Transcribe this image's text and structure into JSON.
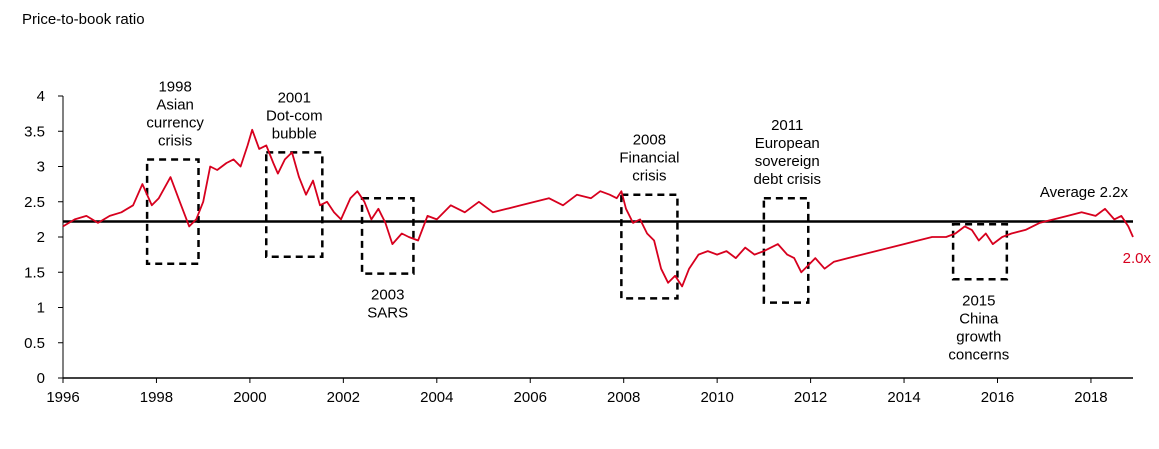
{
  "chart_data": {
    "type": "line",
    "title": "",
    "ylabel": "Price-to-book ratio",
    "xlabel": "",
    "ylim": [
      0,
      4
    ],
    "xlim": [
      1996,
      2018.9
    ],
    "grid": false,
    "y_ticks": [
      "0",
      "0.5",
      "1",
      "1.5",
      "2",
      "2.5",
      "3",
      "3.5",
      "4"
    ],
    "x_ticks": [
      "1996",
      "1998",
      "2000",
      "2002",
      "2004",
      "2006",
      "2008",
      "2010",
      "2012",
      "2014",
      "2016",
      "2018"
    ],
    "colors": {
      "series": "#d7001e",
      "average": "#000000"
    },
    "average": {
      "value": 2.22,
      "label": "Average 2.2x"
    },
    "end_label": {
      "text": "2.0x",
      "x": 2018.85,
      "y": 2.0
    },
    "series": [
      {
        "x": [
          1996.0,
          1996.25,
          1996.5,
          1996.75,
          1997.0,
          1997.25,
          1997.5,
          1997.7,
          1997.9,
          1998.05,
          1998.3,
          1998.5,
          1998.7,
          1998.85,
          1999.0,
          1999.15,
          1999.3,
          1999.5,
          1999.65,
          1999.8,
          1999.95,
          2000.05,
          2000.2,
          2000.35,
          2000.5,
          2000.6,
          2000.75,
          2000.9,
          2001.05,
          2001.2,
          2001.35,
          2001.5,
          2001.65,
          2001.8,
          2001.95,
          2002.15,
          2002.3,
          2002.45,
          2002.6,
          2002.75,
          2002.9,
          2003.05,
          2003.25,
          2003.4,
          2003.6,
          2003.8,
          2004.0,
          2004.3,
          2004.6,
          2004.9,
          2005.2,
          2005.5,
          2005.8,
          2006.1,
          2006.4,
          2006.7,
          2007.0,
          2007.3,
          2007.5,
          2007.7,
          2007.85,
          2007.95,
          2008.05,
          2008.2,
          2008.35,
          2008.5,
          2008.65,
          2008.8,
          2008.95,
          2009.1,
          2009.25,
          2009.4,
          2009.6,
          2009.8,
          2010.0,
          2010.2,
          2010.4,
          2010.6,
          2010.8,
          2011.0,
          2011.15,
          2011.3,
          2011.5,
          2011.65,
          2011.8,
          2011.95,
          2012.1,
          2012.3,
          2012.5,
          2012.8,
          2013.1,
          2013.4,
          2013.7,
          2014.0,
          2014.3,
          2014.6,
          2014.9,
          2015.1,
          2015.3,
          2015.45,
          2015.6,
          2015.75,
          2015.9,
          2016.1,
          2016.3,
          2016.6,
          2016.9,
          2017.2,
          2017.5,
          2017.8,
          2018.1,
          2018.3,
          2018.5,
          2018.65,
          2018.8,
          2018.9
        ],
        "values": [
          2.15,
          2.25,
          2.3,
          2.2,
          2.3,
          2.35,
          2.45,
          2.75,
          2.45,
          2.55,
          2.85,
          2.5,
          2.15,
          2.25,
          2.5,
          3.0,
          2.95,
          3.05,
          3.1,
          3.0,
          3.3,
          3.52,
          3.25,
          3.3,
          3.05,
          2.9,
          3.1,
          3.2,
          2.85,
          2.6,
          2.8,
          2.45,
          2.5,
          2.35,
          2.25,
          2.55,
          2.65,
          2.5,
          2.25,
          2.4,
          2.2,
          1.9,
          2.05,
          2.0,
          1.95,
          2.3,
          2.25,
          2.45,
          2.35,
          2.5,
          2.35,
          2.4,
          2.45,
          2.5,
          2.55,
          2.45,
          2.6,
          2.55,
          2.65,
          2.6,
          2.55,
          2.65,
          2.4,
          2.2,
          2.25,
          2.05,
          1.95,
          1.55,
          1.35,
          1.45,
          1.3,
          1.55,
          1.75,
          1.8,
          1.75,
          1.8,
          1.7,
          1.85,
          1.75,
          1.8,
          1.85,
          1.9,
          1.75,
          1.7,
          1.5,
          1.6,
          1.7,
          1.55,
          1.65,
          1.7,
          1.75,
          1.8,
          1.85,
          1.9,
          1.95,
          2.0,
          2.0,
          2.05,
          2.15,
          2.1,
          1.95,
          2.05,
          1.9,
          2.0,
          2.05,
          2.1,
          2.2,
          2.25,
          2.3,
          2.35,
          2.3,
          2.4,
          2.25,
          2.3,
          2.15,
          2.0
        ]
      }
    ],
    "annotations": [
      {
        "lines": [
          "1998",
          "Asian",
          "currency",
          "crisis"
        ],
        "box": {
          "x0": 1997.8,
          "x1": 1998.9,
          "y0": 1.62,
          "y1": 3.1
        },
        "label_x": 1998.4,
        "label_pos": "above"
      },
      {
        "lines": [
          "2001",
          "Dot-com",
          "bubble"
        ],
        "box": {
          "x0": 2000.35,
          "x1": 2001.55,
          "y0": 1.72,
          "y1": 3.2
        },
        "label_x": 2000.95,
        "label_pos": "above"
      },
      {
        "lines": [
          "2003",
          "SARS"
        ],
        "box": {
          "x0": 2002.4,
          "x1": 2003.5,
          "y0": 1.48,
          "y1": 2.55
        },
        "label_x": 2002.95,
        "label_pos": "below"
      },
      {
        "lines": [
          "2008",
          "Financial",
          "crisis"
        ],
        "box": {
          "x0": 2007.95,
          "x1": 2009.15,
          "y0": 1.13,
          "y1": 2.6
        },
        "label_x": 2008.55,
        "label_pos": "above"
      },
      {
        "lines": [
          "2011",
          "European",
          "sovereign",
          "debt crisis"
        ],
        "box": {
          "x0": 2011.0,
          "x1": 2011.95,
          "y0": 1.07,
          "y1": 2.55
        },
        "label_x": 2011.5,
        "label_pos": "above"
      },
      {
        "lines": [
          "2015",
          "China",
          "growth",
          "concerns"
        ],
        "box": {
          "x0": 2015.05,
          "x1": 2016.2,
          "y0": 1.4,
          "y1": 2.18
        },
        "label_x": 2015.6,
        "label_pos": "below"
      }
    ]
  }
}
